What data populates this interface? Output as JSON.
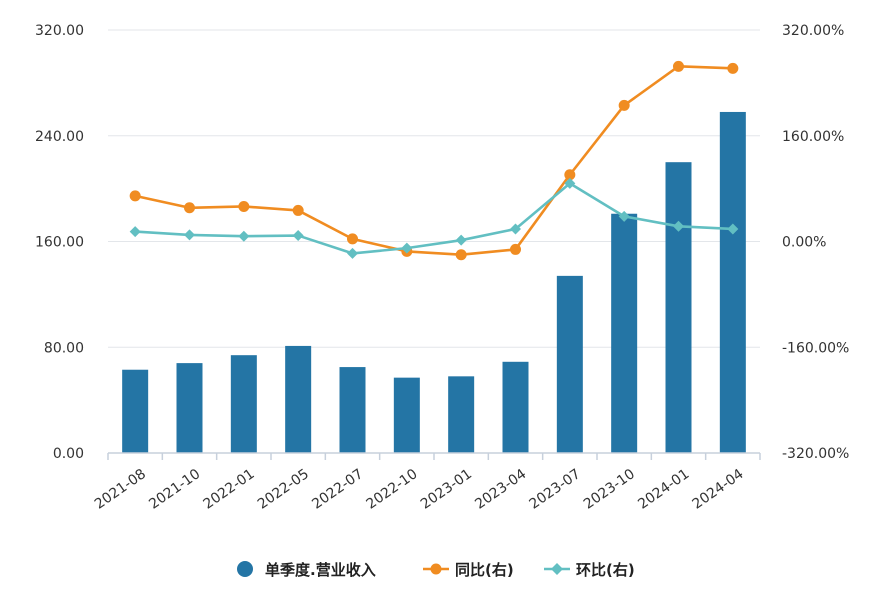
{
  "chart_data": {
    "type": "bar",
    "categories": [
      "2021-08",
      "2021-10",
      "2022-01",
      "2022-05",
      "2022-07",
      "2022-10",
      "2023-01",
      "2023-04",
      "2023-07",
      "2023-10",
      "2024-01",
      "2024-04"
    ],
    "y_left": {
      "ticks": [
        "0.00",
        "80.00",
        "160.00",
        "240.00",
        "320.00"
      ],
      "range": [
        0,
        320
      ]
    },
    "y_right": {
      "ticks": [
        "-320.00%",
        "-160.00%",
        "0.00%",
        "160.00%",
        "320.00%"
      ],
      "range": [
        -320,
        320
      ]
    },
    "grid": true,
    "legend_position": "bottom",
    "series": [
      {
        "name": "单季度.营业收入",
        "type": "bar",
        "axis": "left",
        "color": "#2475a5",
        "values": [
          63,
          68,
          74,
          81,
          65,
          57,
          58,
          69,
          134,
          181,
          220,
          258
        ]
      },
      {
        "name": "同比(右)",
        "type": "line",
        "axis": "right",
        "color": "#f08c21",
        "marker": "circle",
        "values": [
          69,
          51,
          53,
          47,
          4,
          -15,
          -20,
          -12,
          101,
          206,
          265,
          262
        ]
      },
      {
        "name": "环比(右)",
        "type": "line",
        "axis": "right",
        "color": "#62bfc2",
        "marker": "diamond",
        "values": [
          15,
          10,
          8,
          9,
          -18,
          -10,
          2,
          19,
          88,
          38,
          23,
          19
        ]
      }
    ]
  }
}
